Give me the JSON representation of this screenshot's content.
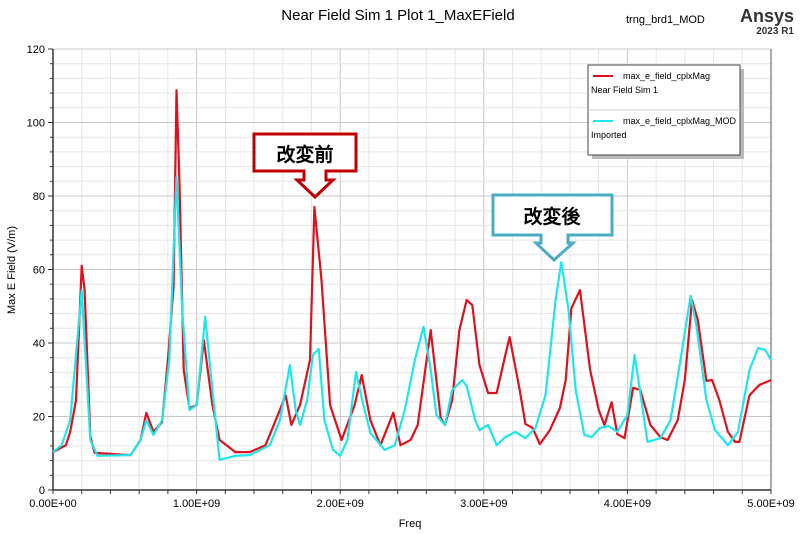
{
  "chart_data": {
    "type": "line",
    "title": "Near Field Sim 1  Plot 1_MaxEField",
    "header_right": "trng_brd1_MOD",
    "brand": "Ansys",
    "brand_version": "2023 R1",
    "xlabel": "Freq",
    "ylabel": "Max E Field (V/m)",
    "xlim": [
      0,
      5
    ],
    "x_unit_multiplier": 1000000000.0,
    "ylim": [
      0,
      120
    ],
    "grid": true,
    "x_ticks": [
      {
        "v": 0,
        "label": "0.00E+00"
      },
      {
        "v": 1,
        "label": "1.00E+09"
      },
      {
        "v": 2,
        "label": "2.00E+09"
      },
      {
        "v": 3,
        "label": "3.00E+09"
      },
      {
        "v": 4,
        "label": "4.00E+09"
      },
      {
        "v": 5,
        "label": "5.00E+09"
      }
    ],
    "y_ticks": [
      {
        "v": 0,
        "label": "0"
      },
      {
        "v": 20,
        "label": "20"
      },
      {
        "v": 40,
        "label": "40"
      },
      {
        "v": 60,
        "label": "60"
      },
      {
        "v": 80,
        "label": "80"
      },
      {
        "v": 100,
        "label": "100"
      },
      {
        "v": 120,
        "label": "120"
      }
    ],
    "legend_position": "top-right",
    "series": [
      {
        "name": "max_e_field_cplxMag",
        "source": "Near Field Sim 1",
        "color": "#e0101c",
        "x": [
          0,
          0.09,
          0.12,
          0.16,
          0.2,
          0.22,
          0.26,
          0.29,
          0.54,
          0.61,
          0.65,
          0.7,
          0.76,
          0.8,
          0.84,
          0.86,
          0.88,
          0.91,
          0.95,
          1.0,
          1.05,
          1.11,
          1.16,
          1.27,
          1.37,
          1.48,
          1.58,
          1.62,
          1.66,
          1.72,
          1.79,
          1.82,
          1.87,
          1.93,
          2.01,
          2.1,
          2.15,
          2.21,
          2.28,
          2.37,
          2.42,
          2.49,
          2.54,
          2.63,
          2.7,
          2.73,
          2.78,
          2.83,
          2.88,
          2.92,
          2.97,
          3.03,
          3.09,
          3.15,
          3.18,
          3.25,
          3.29,
          3.34,
          3.39,
          3.46,
          3.53,
          3.57,
          3.61,
          3.67,
          3.74,
          3.8,
          3.84,
          3.89,
          3.93,
          3.98,
          4.04,
          4.09,
          4.16,
          4.23,
          4.28,
          4.35,
          4.4,
          4.45,
          4.49,
          4.55,
          4.59,
          4.64,
          4.7,
          4.75,
          4.78,
          4.85,
          4.92,
          5.0
        ],
        "y": [
          10.3,
          12.2,
          15.8,
          24.5,
          61.0,
          54.4,
          14.7,
          10.1,
          9.5,
          13.6,
          21.0,
          15.8,
          18.5,
          35.4,
          55.5,
          108.8,
          84.4,
          32.7,
          22.3,
          23.1,
          40.8,
          23.1,
          13.6,
          10.3,
          10.3,
          12.2,
          21.8,
          25.8,
          17.7,
          23.1,
          35.4,
          77.0,
          57.1,
          23.1,
          13.6,
          23.1,
          31.3,
          19.0,
          12.2,
          21.0,
          12.2,
          13.6,
          17.7,
          43.5,
          19.6,
          17.7,
          24.5,
          43.5,
          51.7,
          50.3,
          34.0,
          26.4,
          26.4,
          36.7,
          41.6,
          27.2,
          18.0,
          16.9,
          12.5,
          16.3,
          22.3,
          29.9,
          49.5,
          54.4,
          32.7,
          21.8,
          17.7,
          23.9,
          15.2,
          14.1,
          27.8,
          27.2,
          17.7,
          14.4,
          13.6,
          19.0,
          29.9,
          51.7,
          46.3,
          29.7,
          29.9,
          24.5,
          15.8,
          13.1,
          13.1,
          25.8,
          28.6,
          29.9
        ]
      },
      {
        "name": "max_e_field_cplxMag_MOD",
        "source": "Imported",
        "color": "#1ee6ee",
        "x": [
          0,
          0.06,
          0.12,
          0.2,
          0.26,
          0.31,
          0.54,
          0.61,
          0.65,
          0.7,
          0.76,
          0.81,
          0.86,
          0.9,
          0.95,
          1.0,
          1.06,
          1.11,
          1.16,
          1.27,
          1.37,
          1.51,
          1.58,
          1.65,
          1.69,
          1.72,
          1.77,
          1.81,
          1.85,
          1.89,
          1.95,
          2.0,
          2.05,
          2.11,
          2.15,
          2.21,
          2.31,
          2.38,
          2.45,
          2.52,
          2.58,
          2.63,
          2.67,
          2.73,
          2.78,
          2.85,
          2.88,
          2.94,
          2.97,
          3.03,
          3.09,
          3.15,
          3.22,
          3.29,
          3.36,
          3.43,
          3.5,
          3.54,
          3.59,
          3.64,
          3.7,
          3.75,
          3.81,
          3.87,
          3.93,
          4.0,
          4.05,
          4.09,
          4.14,
          4.23,
          4.3,
          4.37,
          4.44,
          4.48,
          4.55,
          4.61,
          4.7,
          4.77,
          4.85,
          4.91,
          4.96,
          5.0
        ],
        "y": [
          10.3,
          12.2,
          19.0,
          54.4,
          13.6,
          9.3,
          9.5,
          13.6,
          19.0,
          15.0,
          19.0,
          35.4,
          85.2,
          49.0,
          21.8,
          23.1,
          47.1,
          27.2,
          8.2,
          9.3,
          9.5,
          12.2,
          19.0,
          34.0,
          21.8,
          17.7,
          24.5,
          36.7,
          38.4,
          19.0,
          10.9,
          9.3,
          13.6,
          32.1,
          25.0,
          15.5,
          10.9,
          12.2,
          21.8,
          35.4,
          44.4,
          32.7,
          20.4,
          17.7,
          27.2,
          29.9,
          28.3,
          19.0,
          16.3,
          17.7,
          12.2,
          14.4,
          15.8,
          14.1,
          16.9,
          25.8,
          51.7,
          62.0,
          49.0,
          27.2,
          15.0,
          14.4,
          16.9,
          17.4,
          15.8,
          20.4,
          36.7,
          26.4,
          13.1,
          14.1,
          19.0,
          35.4,
          52.8,
          44.9,
          24.5,
          16.3,
          12.2,
          15.8,
          32.7,
          38.6,
          38.1,
          35.4
        ]
      }
    ],
    "annotations": [
      {
        "text": "改変前",
        "target_x": 1.82,
        "target_y": 77.0,
        "color": "#c00000"
      },
      {
        "text": "改変後",
        "target_x": 3.54,
        "target_y": 62.0,
        "color": "#4bacc6"
      }
    ]
  }
}
